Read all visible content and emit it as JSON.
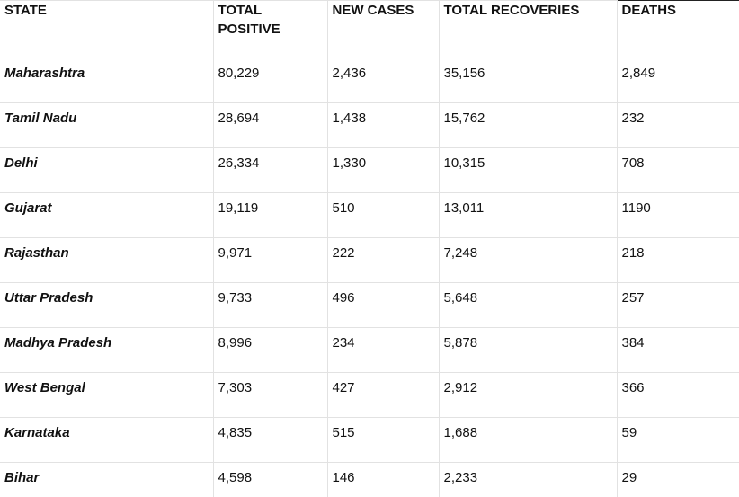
{
  "table": {
    "headers": {
      "state": "STATE",
      "total_positive_line1": "TOTAL",
      "total_positive_line2": "POSITIVE",
      "new_cases": "NEW CASES",
      "total_recoveries": "TOTAL RECOVERIES",
      "deaths": "DEATHS"
    },
    "rows": [
      {
        "state": "Maharashtra",
        "total_positive": "80,229",
        "new_cases": "2,436",
        "total_recoveries": "35,156",
        "deaths": "2,849"
      },
      {
        "state": "Tamil Nadu",
        "total_positive": "28,694",
        "new_cases": "1,438",
        "total_recoveries": "15,762",
        "deaths": "232"
      },
      {
        "state": "Delhi",
        "total_positive": "26,334",
        "new_cases": "1,330",
        "total_recoveries": "10,315",
        "deaths": "708"
      },
      {
        "state": "Gujarat",
        "total_positive": "19,119",
        "new_cases": "510",
        "total_recoveries": "13,011",
        "deaths": "1190"
      },
      {
        "state": "Rajasthan",
        "total_positive": "9,971",
        "new_cases": "222",
        "total_recoveries": "7,248",
        "deaths": "218"
      },
      {
        "state": "Uttar Pradesh",
        "total_positive": "9,733",
        "new_cases": "496",
        "total_recoveries": "5,648",
        "deaths": "257"
      },
      {
        "state": "Madhya Pradesh",
        "total_positive": "8,996",
        "new_cases": "234",
        "total_recoveries": "5,878",
        "deaths": "384"
      },
      {
        "state": "West Bengal",
        "total_positive": "7,303",
        "new_cases": "427",
        "total_recoveries": "2,912",
        "deaths": "366"
      },
      {
        "state": "Karnataka",
        "total_positive": "4,835",
        "new_cases": "515",
        "total_recoveries": "1,688",
        "deaths": "59"
      },
      {
        "state": "Bihar",
        "total_positive": "4,598",
        "new_cases": "146",
        "total_recoveries": "2,233",
        "deaths": "29"
      }
    ]
  }
}
